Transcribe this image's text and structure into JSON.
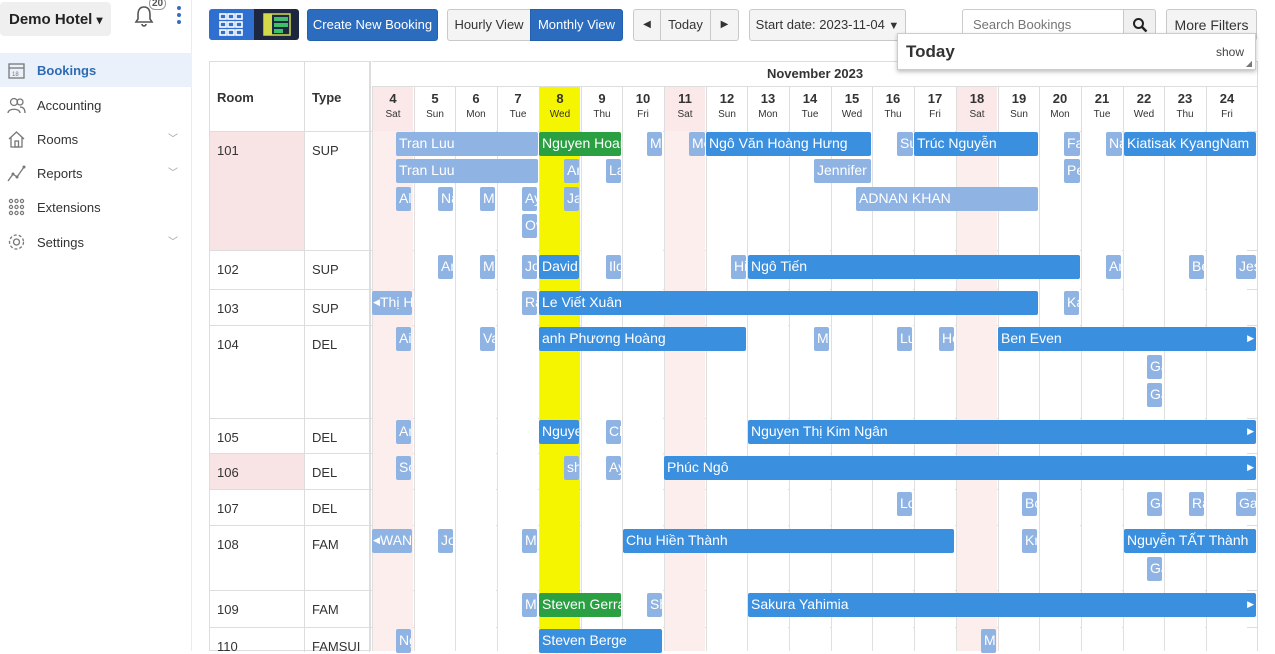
{
  "hotel": {
    "name": "Demo Hotel",
    "caret": "▾",
    "notif_count": "20"
  },
  "sidebar": {
    "items": [
      {
        "label": "Bookings",
        "icon": "calendar-icon"
      },
      {
        "label": "Accounting",
        "icon": "people-icon"
      },
      {
        "label": "Rooms",
        "icon": "house-icon"
      },
      {
        "label": "Reports",
        "icon": "chart-line-icon"
      },
      {
        "label": "Extensions",
        "icon": "grid-dots-icon"
      },
      {
        "label": "Settings",
        "icon": "gear-icon"
      }
    ]
  },
  "toolbar": {
    "create": "Create New Booking",
    "hourly": "Hourly View",
    "monthly": "Monthly View",
    "prev": "◀",
    "today": "Today",
    "next": "▶",
    "start_date": "Start date: 2023-11-04",
    "start_caret": "▼",
    "search_placeholder": "Search Bookings",
    "more_filters": "More Filters"
  },
  "today_popup": {
    "title": "Today",
    "show": "show"
  },
  "table": {
    "room_header": "Room",
    "type_header": "Type",
    "month": "November 2023"
  },
  "days": [
    {
      "n": "4",
      "w": "Sat"
    },
    {
      "n": "5",
      "w": "Sun"
    },
    {
      "n": "6",
      "w": "Mon"
    },
    {
      "n": "7",
      "w": "Tue"
    },
    {
      "n": "8",
      "w": "Wed"
    },
    {
      "n": "9",
      "w": "Thu"
    },
    {
      "n": "10",
      "w": "Fri"
    },
    {
      "n": "11",
      "w": "Sat"
    },
    {
      "n": "12",
      "w": "Sun"
    },
    {
      "n": "13",
      "w": "Mon"
    },
    {
      "n": "14",
      "w": "Tue"
    },
    {
      "n": "15",
      "w": "Wed"
    },
    {
      "n": "16",
      "w": "Thu"
    },
    {
      "n": "17",
      "w": "Fri"
    },
    {
      "n": "18",
      "w": "Sat"
    },
    {
      "n": "19",
      "w": "Sun"
    },
    {
      "n": "20",
      "w": "Mon"
    },
    {
      "n": "21",
      "w": "Tue"
    },
    {
      "n": "22",
      "w": "Wed"
    },
    {
      "n": "23",
      "w": "Thu"
    },
    {
      "n": "24",
      "w": "Fri"
    }
  ],
  "rooms": [
    {
      "room": "101",
      "type": "SUP"
    },
    {
      "room": "102",
      "type": "SUP"
    },
    {
      "room": "103",
      "type": "SUP"
    },
    {
      "room": "104",
      "type": "DEL"
    },
    {
      "room": "105",
      "type": "DEL"
    },
    {
      "room": "106",
      "type": "DEL"
    },
    {
      "room": "107",
      "type": "DEL"
    },
    {
      "room": "108",
      "type": "FAM"
    },
    {
      "room": "109",
      "type": "FAM"
    },
    {
      "room": "110",
      "type": "FAMSUI"
    }
  ],
  "bookings": [
    {
      "label": "Tran Luu",
      "color": "light"
    },
    {
      "label": "Nguyen Hoan",
      "color": "green"
    },
    {
      "label": "Mi",
      "color": "light"
    },
    {
      "label": "Mo",
      "color": "light"
    },
    {
      "label": "Ngô Văn Hoàng Hưng",
      "color": "blue"
    },
    {
      "label": "Su",
      "color": "light"
    },
    {
      "label": "Trúc Nguyễn",
      "color": "blue"
    },
    {
      "label": "Fa",
      "color": "light"
    },
    {
      "label": "Na",
      "color": "light"
    },
    {
      "label": "Kiatisak KyangNam",
      "color": "blue"
    },
    {
      "label": "Tran Luu",
      "color": "light"
    },
    {
      "label": "Ar",
      "color": "light"
    },
    {
      "label": "La",
      "color": "light"
    },
    {
      "label": "Jennifer L",
      "color": "light"
    },
    {
      "label": "Pe",
      "color": "light"
    },
    {
      "label": "Al",
      "color": "light"
    },
    {
      "label": "Na",
      "color": "light"
    },
    {
      "label": "Ma",
      "color": "light"
    },
    {
      "label": "Ay",
      "color": "light"
    },
    {
      "label": "Ja",
      "color": "light"
    },
    {
      "label": "ADNAN KHAN",
      "color": "light"
    },
    {
      "label": "Ov",
      "color": "light"
    },
    {
      "label": "An",
      "color": "light"
    },
    {
      "label": "Ma",
      "color": "light"
    },
    {
      "label": "Jo",
      "color": "light"
    },
    {
      "label": "David",
      "color": "blue"
    },
    {
      "label": "Ilo",
      "color": "light"
    },
    {
      "label": "Hi",
      "color": "light"
    },
    {
      "label": "Ngô Tiến",
      "color": "blue"
    },
    {
      "label": "An",
      "color": "light"
    },
    {
      "label": "Be",
      "color": "light"
    },
    {
      "label": "Jes",
      "color": "light"
    },
    {
      "label": "Thị H",
      "color": "light"
    },
    {
      "label": "Ra",
      "color": "light"
    },
    {
      "label": "Le Viết Xuân",
      "color": "blue"
    },
    {
      "label": "Ka",
      "color": "light"
    },
    {
      "label": "Ai",
      "color": "light"
    },
    {
      "label": "Va",
      "color": "light"
    },
    {
      "label": "anh Phương Hoàng",
      "color": "blue"
    },
    {
      "label": "Ma",
      "color": "light"
    },
    {
      "label": "Lu",
      "color": "light"
    },
    {
      "label": "Ho",
      "color": "light"
    },
    {
      "label": "Ben Even",
      "color": "blue"
    },
    {
      "label": "Ga",
      "color": "light"
    },
    {
      "label": "Ga",
      "color": "light"
    },
    {
      "label": "An",
      "color": "light"
    },
    {
      "label": "Nguye",
      "color": "blue"
    },
    {
      "label": "Ch",
      "color": "light"
    },
    {
      "label": "Nguyen Thị Kim Ngân",
      "color": "blue"
    },
    {
      "label": "So",
      "color": "light"
    },
    {
      "label": "sh",
      "color": "light"
    },
    {
      "label": "Ay",
      "color": "light"
    },
    {
      "label": "Phúc Ngô",
      "color": "blue"
    },
    {
      "label": "Lo",
      "color": "light"
    },
    {
      "label": "Bo",
      "color": "light"
    },
    {
      "label": "Ga",
      "color": "light"
    },
    {
      "label": "Ra",
      "color": "light"
    },
    {
      "label": "Ga",
      "color": "light"
    },
    {
      "label": "WAN",
      "color": "light"
    },
    {
      "label": "Jo",
      "color": "light"
    },
    {
      "label": "Ma",
      "color": "light"
    },
    {
      "label": "Chu Hiền Thành",
      "color": "blue"
    },
    {
      "label": "Kr",
      "color": "light"
    },
    {
      "label": "Nguyễn TẤT Thành",
      "color": "blue"
    },
    {
      "label": "Ga",
      "color": "light"
    },
    {
      "label": "Ma",
      "color": "light"
    },
    {
      "label": "Steven Gerra",
      "color": "green"
    },
    {
      "label": "Sh",
      "color": "light"
    },
    {
      "label": "Sakura Yahimia",
      "color": "blue"
    },
    {
      "label": "Ng",
      "color": "light"
    },
    {
      "label": "Steven Berge",
      "color": "blue"
    },
    {
      "label": "Me",
      "color": "light"
    }
  ]
}
